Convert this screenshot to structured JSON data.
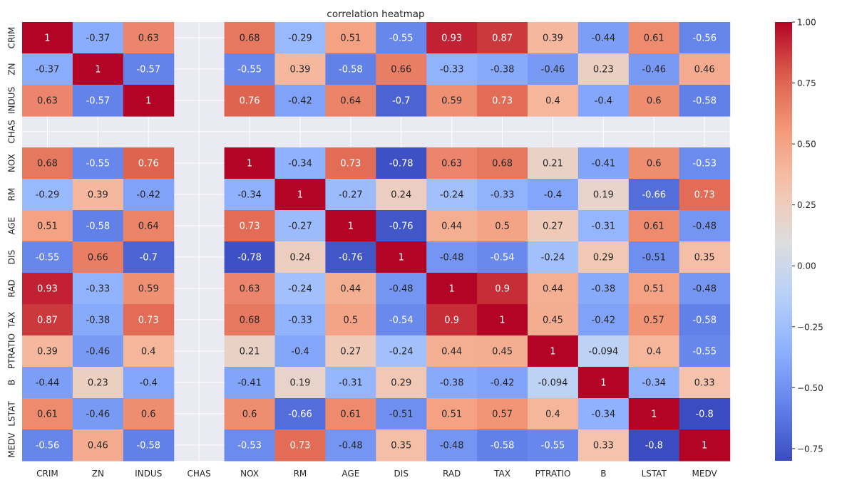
{
  "chart_data": {
    "type": "heatmap",
    "title": "correlation heatmap",
    "xlabel": "",
    "ylabel": "",
    "row_labels": [
      "CRIM",
      "ZN",
      "INDUS",
      "CHAS",
      "NOX",
      "RM",
      "AGE",
      "DIS",
      "RAD",
      "TAX",
      "PTRATIO",
      "B",
      "LSTAT",
      "MEDV"
    ],
    "col_labels": [
      "CRIM",
      "ZN",
      "INDUS",
      "CHAS",
      "NOX",
      "RM",
      "AGE",
      "DIS",
      "RAD",
      "TAX",
      "PTRATIO",
      "B",
      "LSTAT",
      "MEDV"
    ],
    "values": [
      [
        1,
        -0.37,
        0.63,
        null,
        0.68,
        -0.29,
        0.51,
        -0.55,
        0.93,
        0.87,
        0.39,
        -0.44,
        0.61,
        -0.56
      ],
      [
        -0.37,
        1,
        -0.57,
        null,
        -0.55,
        0.39,
        -0.58,
        0.66,
        -0.33,
        -0.38,
        -0.46,
        0.23,
        -0.46,
        0.46
      ],
      [
        0.63,
        -0.57,
        1,
        null,
        0.76,
        -0.42,
        0.64,
        -0.7,
        0.59,
        0.73,
        0.4,
        -0.4,
        0.6,
        -0.58
      ],
      [
        null,
        null,
        null,
        null,
        null,
        null,
        null,
        null,
        null,
        null,
        null,
        null,
        null,
        null
      ],
      [
        0.68,
        -0.55,
        0.76,
        null,
        1,
        -0.34,
        0.73,
        -0.78,
        0.63,
        0.68,
        0.21,
        -0.41,
        0.6,
        -0.53
      ],
      [
        -0.29,
        0.39,
        -0.42,
        null,
        -0.34,
        1,
        -0.27,
        0.24,
        -0.24,
        -0.33,
        -0.4,
        0.19,
        -0.66,
        0.73
      ],
      [
        0.51,
        -0.58,
        0.64,
        null,
        0.73,
        -0.27,
        1,
        -0.76,
        0.44,
        0.5,
        0.27,
        -0.31,
        0.61,
        -0.48
      ],
      [
        -0.55,
        0.66,
        -0.7,
        null,
        -0.78,
        0.24,
        -0.76,
        1,
        -0.48,
        -0.54,
        -0.24,
        0.29,
        -0.51,
        0.35
      ],
      [
        0.93,
        -0.33,
        0.59,
        null,
        0.63,
        -0.24,
        0.44,
        -0.48,
        1,
        0.9,
        0.44,
        -0.38,
        0.51,
        -0.48
      ],
      [
        0.87,
        -0.38,
        0.73,
        null,
        0.68,
        -0.33,
        0.5,
        -0.54,
        0.9,
        1,
        0.45,
        -0.42,
        0.57,
        -0.58
      ],
      [
        0.39,
        -0.46,
        0.4,
        null,
        0.21,
        -0.4,
        0.27,
        -0.24,
        0.44,
        0.45,
        1,
        -0.094,
        0.4,
        -0.55
      ],
      [
        -0.44,
        0.23,
        -0.4,
        null,
        -0.41,
        0.19,
        -0.31,
        0.29,
        -0.38,
        -0.42,
        -0.094,
        1,
        -0.34,
        0.33
      ],
      [
        0.61,
        -0.46,
        0.6,
        null,
        0.6,
        -0.66,
        0.61,
        -0.51,
        0.51,
        0.57,
        0.4,
        -0.34,
        1,
        -0.8
      ],
      [
        -0.56,
        0.46,
        -0.58,
        null,
        -0.53,
        0.73,
        -0.48,
        0.35,
        -0.48,
        -0.58,
        -0.55,
        0.33,
        -0.8,
        1
      ]
    ],
    "colormap": "coolwarm",
    "vmin": -0.8,
    "vmax": 1.0,
    "colorbar_ticks": [
      "1.00",
      "0.75",
      "0.50",
      "0.25",
      "0.00",
      "−0.25",
      "−0.50",
      "−0.75"
    ],
    "colorbar_tick_values": [
      1.0,
      0.75,
      0.5,
      0.25,
      0.0,
      -0.25,
      -0.5,
      -0.75
    ],
    "grid": true,
    "legend": "colorbar-right",
    "colors": {
      "background": "#eaeaf2",
      "grid": "#ffffff",
      "text": "#262626",
      "annotation_dark": "#262626",
      "annotation_light": "#ffffff"
    }
  }
}
